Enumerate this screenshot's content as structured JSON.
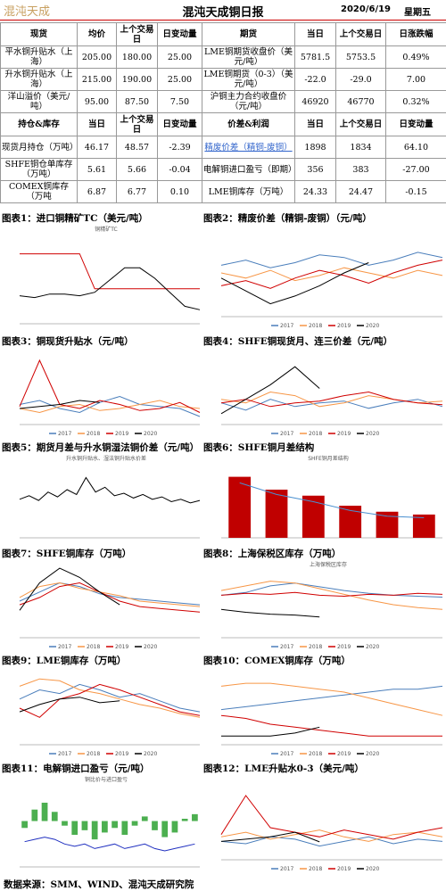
{
  "header": {
    "logo": "混沌天成",
    "title": "混沌天成铜日报",
    "date": "2020/6/19",
    "weekday": "星期五"
  },
  "table": {
    "rows": [
      [
        "现货",
        "均价",
        "上个交易日",
        "日变动量",
        "期货",
        "当日",
        "上个交易日",
        "日涨跌幅"
      ],
      [
        "平水铜升贴水（上海）",
        "205.00",
        "180.00",
        "25.00",
        "LME铜期货收盘价（美元/吨）",
        "5781.5",
        "5753.5",
        "0.49%"
      ],
      [
        "升水铜升贴水（上海）",
        "215.00",
        "190.00",
        "25.00",
        "LME铜期货（0-3）（美元/吨）",
        "-22.0",
        "-29.0",
        "7.00"
      ],
      [
        "洋山溢价（美元/吨）",
        "95.00",
        "87.50",
        "7.50",
        "沪铜主力合约收盘价（元/吨）",
        "46920",
        "46770",
        "0.32%"
      ],
      [
        "持仓&库存",
        "当日",
        "上个交易日",
        "日变动量",
        "价差&利润",
        "当日",
        "上个交易日",
        "日变动量"
      ],
      [
        "现货月持仓（万吨）",
        "46.17",
        "48.57",
        "-2.39",
        "精废价差（精铜-废铜）",
        "1898",
        "1834",
        "64.10"
      ],
      [
        "SHFE铜仓单库存（万吨）",
        "5.61",
        "5.66",
        "-0.04",
        "电解铜进口盈亏（即期）",
        "356",
        "383",
        "-27.00"
      ],
      [
        "COMEX铜库存（万吨",
        "6.87",
        "6.77",
        "0.10",
        "LME铜库存（万吨）",
        "24.33",
        "24.47",
        "-0.15"
      ]
    ]
  },
  "charts": [
    {
      "type": "line",
      "caption": "图表1：进口铜精矿TC（美元/吨）",
      "title": "铜精矿TC",
      "ylim": [
        40,
        90
      ],
      "series": [
        {
          "color": "#d00000",
          "values": [
            80,
            80,
            80,
            80,
            80,
            60,
            60,
            60,
            60,
            60,
            60,
            60,
            60
          ]
        },
        {
          "color": "#000000",
          "values": [
            56,
            55,
            57,
            57,
            56,
            58,
            65,
            72,
            72,
            66,
            58,
            50,
            48
          ]
        }
      ]
    },
    {
      "type": "line",
      "caption": "图表2：精废价差（精铜-废铜）（元/吨）",
      "ylim": [
        -200,
        3200
      ],
      "series": [
        {
          "name": "2017",
          "color": "#4a7ebb",
          "values": [
            1800,
            2000,
            1700,
            1900,
            2200,
            2100,
            1800,
            2000,
            2300,
            2100
          ]
        },
        {
          "name": "2018",
          "color": "#f79646",
          "values": [
            1500,
            1300,
            1600,
            1200,
            1400,
            1700,
            1500,
            1300,
            1600,
            1400
          ]
        },
        {
          "name": "2019",
          "color": "#d00000",
          "values": [
            1000,
            1200,
            900,
            1300,
            1600,
            1400,
            1100,
            1500,
            1800,
            2000
          ]
        },
        {
          "name": "2020",
          "color": "#000000",
          "values": [
            1300,
            800,
            300,
            600,
            1000,
            1500,
            1900,
            null,
            null,
            null
          ]
        }
      ]
    },
    {
      "type": "line",
      "caption": "图表3：铜现货升贴水（元/吨）",
      "ylim": [
        -400,
        1400
      ],
      "series": [
        {
          "name": "2017",
          "color": "#4a7ebb",
          "values": [
            100,
            200,
            0,
            -100,
            150,
            300,
            100,
            50,
            0,
            -200
          ]
        },
        {
          "name": "2018",
          "color": "#f79646",
          "values": [
            0,
            -100,
            50,
            100,
            -50,
            0,
            100,
            200,
            50,
            0
          ]
        },
        {
          "name": "2019",
          "color": "#d00000",
          "values": [
            50,
            1200,
            100,
            0,
            200,
            100,
            -50,
            0,
            150,
            -100
          ]
        },
        {
          "name": "2020",
          "color": "#000000",
          "values": [
            0,
            50,
            100,
            200,
            150,
            null,
            null,
            null,
            null,
            null
          ]
        }
      ]
    },
    {
      "type": "line",
      "caption": "图表4：SHFE铜现货月、连三价差（元/吨）",
      "ylim": [
        -600,
        1400
      ],
      "series": [
        {
          "name": "2017",
          "color": "#4a7ebb",
          "values": [
            0,
            -200,
            100,
            -100,
            0,
            50,
            -150,
            0,
            100,
            -100
          ]
        },
        {
          "name": "2018",
          "color": "#f79646",
          "values": [
            100,
            0,
            300,
            200,
            -100,
            0,
            200,
            100,
            0,
            50
          ]
        },
        {
          "name": "2019",
          "color": "#d00000",
          "values": [
            0,
            100,
            -100,
            0,
            50,
            200,
            300,
            100,
            0,
            -50
          ]
        },
        {
          "name": "2020",
          "color": "#000000",
          "values": [
            -300,
            100,
            500,
            1000,
            400,
            null,
            null,
            null,
            null,
            null
          ]
        }
      ]
    },
    {
      "type": "line",
      "caption": "图表5：期货月差与升水铜湿法铜价差（元/吨）",
      "title": "升水铜升贴水、湿法铜升贴水价差",
      "ylim": [
        -200,
        400
      ],
      "series": [
        {
          "color": "#000000",
          "values": [
            120,
            150,
            110,
            180,
            140,
            200,
            160,
            300,
            180,
            220,
            150,
            170,
            130,
            160,
            120,
            140,
            100,
            120,
            90,
            110
          ]
        }
      ]
    },
    {
      "type": "bar",
      "caption": "图表6：SHFE铜月差结构",
      "title": "SHFE铜月差结构",
      "ylim": [
        45400,
        47200
      ],
      "series": [
        {
          "color": "#c00000",
          "values": [
            46920,
            46600,
            46450,
            46200,
            46050,
            45980
          ]
        },
        {
          "color": "#4a90d0",
          "line": true,
          "values": [
            46770,
            46480,
            46300,
            46080,
            45940,
            45900
          ]
        }
      ]
    },
    {
      "type": "line",
      "caption": "图表7：SHFE铜库存（万吨）",
      "ylim": [
        0,
        40
      ],
      "series": [
        {
          "name": "2017",
          "color": "#4a7ebb",
          "values": [
            20,
            25,
            30,
            28,
            24,
            22,
            21,
            20,
            19,
            18
          ]
        },
        {
          "name": "2018",
          "color": "#f79646",
          "values": [
            22,
            28,
            30,
            27,
            25,
            23,
            20,
            19,
            18,
            17
          ]
        },
        {
          "name": "2019",
          "color": "#d00000",
          "values": [
            18,
            22,
            28,
            30,
            25,
            20,
            17,
            16,
            15,
            14
          ]
        },
        {
          "name": "2020",
          "color": "#000000",
          "values": [
            15,
            30,
            38,
            33,
            25,
            18,
            null,
            null,
            null,
            null
          ]
        }
      ]
    },
    {
      "type": "line",
      "caption": "图表8：上海保税区库存（万吨）",
      "title": "上海保税区库存",
      "ylim": [
        0,
        70
      ],
      "series": [
        {
          "name": "2017",
          "color": "#4a7ebb",
          "values": [
            45,
            48,
            55,
            58,
            54,
            50,
            47,
            45,
            44,
            43
          ]
        },
        {
          "name": "2018",
          "color": "#f79646",
          "values": [
            50,
            55,
            60,
            58,
            52,
            46,
            40,
            35,
            32,
            30
          ]
        },
        {
          "name": "2019",
          "color": "#d00000",
          "values": [
            45,
            47,
            46,
            48,
            45,
            44,
            46,
            45,
            47,
            46
          ]
        },
        {
          "name": "2020",
          "color": "#000000",
          "values": [
            30,
            27,
            25,
            24,
            22,
            null,
            null,
            null,
            null,
            null
          ]
        }
      ]
    },
    {
      "type": "line",
      "caption": "图表9：LME铜库存（万吨）",
      "ylim": [
        0,
        40
      ],
      "series": [
        {
          "name": "2017",
          "color": "#4a7ebb",
          "values": [
            25,
            30,
            28,
            33,
            30,
            26,
            28,
            24,
            20,
            18
          ]
        },
        {
          "name": "2018",
          "color": "#f79646",
          "values": [
            32,
            36,
            35,
            30,
            28,
            25,
            22,
            20,
            17,
            15
          ]
        },
        {
          "name": "2019",
          "color": "#d00000",
          "values": [
            20,
            15,
            25,
            28,
            33,
            30,
            26,
            22,
            18,
            16
          ]
        },
        {
          "name": "2020",
          "color": "#000000",
          "values": [
            18,
            22,
            25,
            26,
            23,
            24,
            null,
            null,
            null,
            null
          ]
        }
      ]
    },
    {
      "type": "line",
      "caption": "图表10：COMEX铜库存（万吨）",
      "ylim": [
        0,
        25
      ],
      "series": [
        {
          "name": "2017",
          "color": "#4a7ebb",
          "values": [
            12,
            13,
            14,
            15,
            16,
            17,
            18,
            19,
            19,
            20
          ]
        },
        {
          "name": "2018",
          "color": "#f79646",
          "values": [
            20,
            21,
            21,
            20,
            19,
            18,
            16,
            14,
            12,
            10
          ]
        },
        {
          "name": "2019",
          "color": "#d00000",
          "values": [
            10,
            9,
            7,
            6,
            5,
            4,
            3,
            3,
            3,
            3
          ]
        },
        {
          "name": "2020",
          "color": "#000000",
          "values": [
            3,
            3,
            3,
            4,
            6,
            null,
            null,
            null,
            null,
            null
          ]
        }
      ]
    },
    {
      "type": "bar",
      "caption": "图表11：电解铜进口盈亏（元/吨）",
      "title": "铜比价与进口盈亏",
      "ylim": [
        -2000,
        1500
      ],
      "series": [
        {
          "color": "#4caf50",
          "values": [
            -300,
            500,
            800,
            400,
            -200,
            -600,
            -400,
            -800,
            -500,
            -300,
            -600,
            -200,
            200,
            -400,
            -700,
            -500,
            100,
            300
          ]
        },
        {
          "color": "#2030c0",
          "line": true,
          "values": [
            -900,
            -800,
            -700,
            -800,
            -1000,
            -1100,
            -1000,
            -1200,
            -1100,
            -1000,
            -1200,
            -1100,
            -1000,
            -1200,
            -1300,
            -1200,
            -1100,
            -1000
          ]
        }
      ]
    },
    {
      "type": "line",
      "caption": "图表12：LME升贴水0-3（美元/吨）",
      "ylim": [
        -100,
        250
      ],
      "series": [
        {
          "name": "2017",
          "color": "#4a7ebb",
          "values": [
            -20,
            -30,
            0,
            -10,
            -40,
            -20,
            0,
            -30,
            -10,
            -20
          ]
        },
        {
          "name": "2018",
          "color": "#f79646",
          "values": [
            0,
            20,
            -10,
            10,
            30,
            0,
            -20,
            10,
            20,
            0
          ]
        },
        {
          "name": "2019",
          "color": "#d00000",
          "values": [
            10,
            180,
            40,
            20,
            0,
            30,
            10,
            -10,
            20,
            40
          ]
        },
        {
          "name": "2020",
          "color": "#000000",
          "values": [
            -20,
            -10,
            0,
            20,
            -22,
            null,
            null,
            null,
            null,
            null
          ]
        }
      ]
    }
  ],
  "footer": "数据来源：SMM、WIND、混沌天成研究院"
}
